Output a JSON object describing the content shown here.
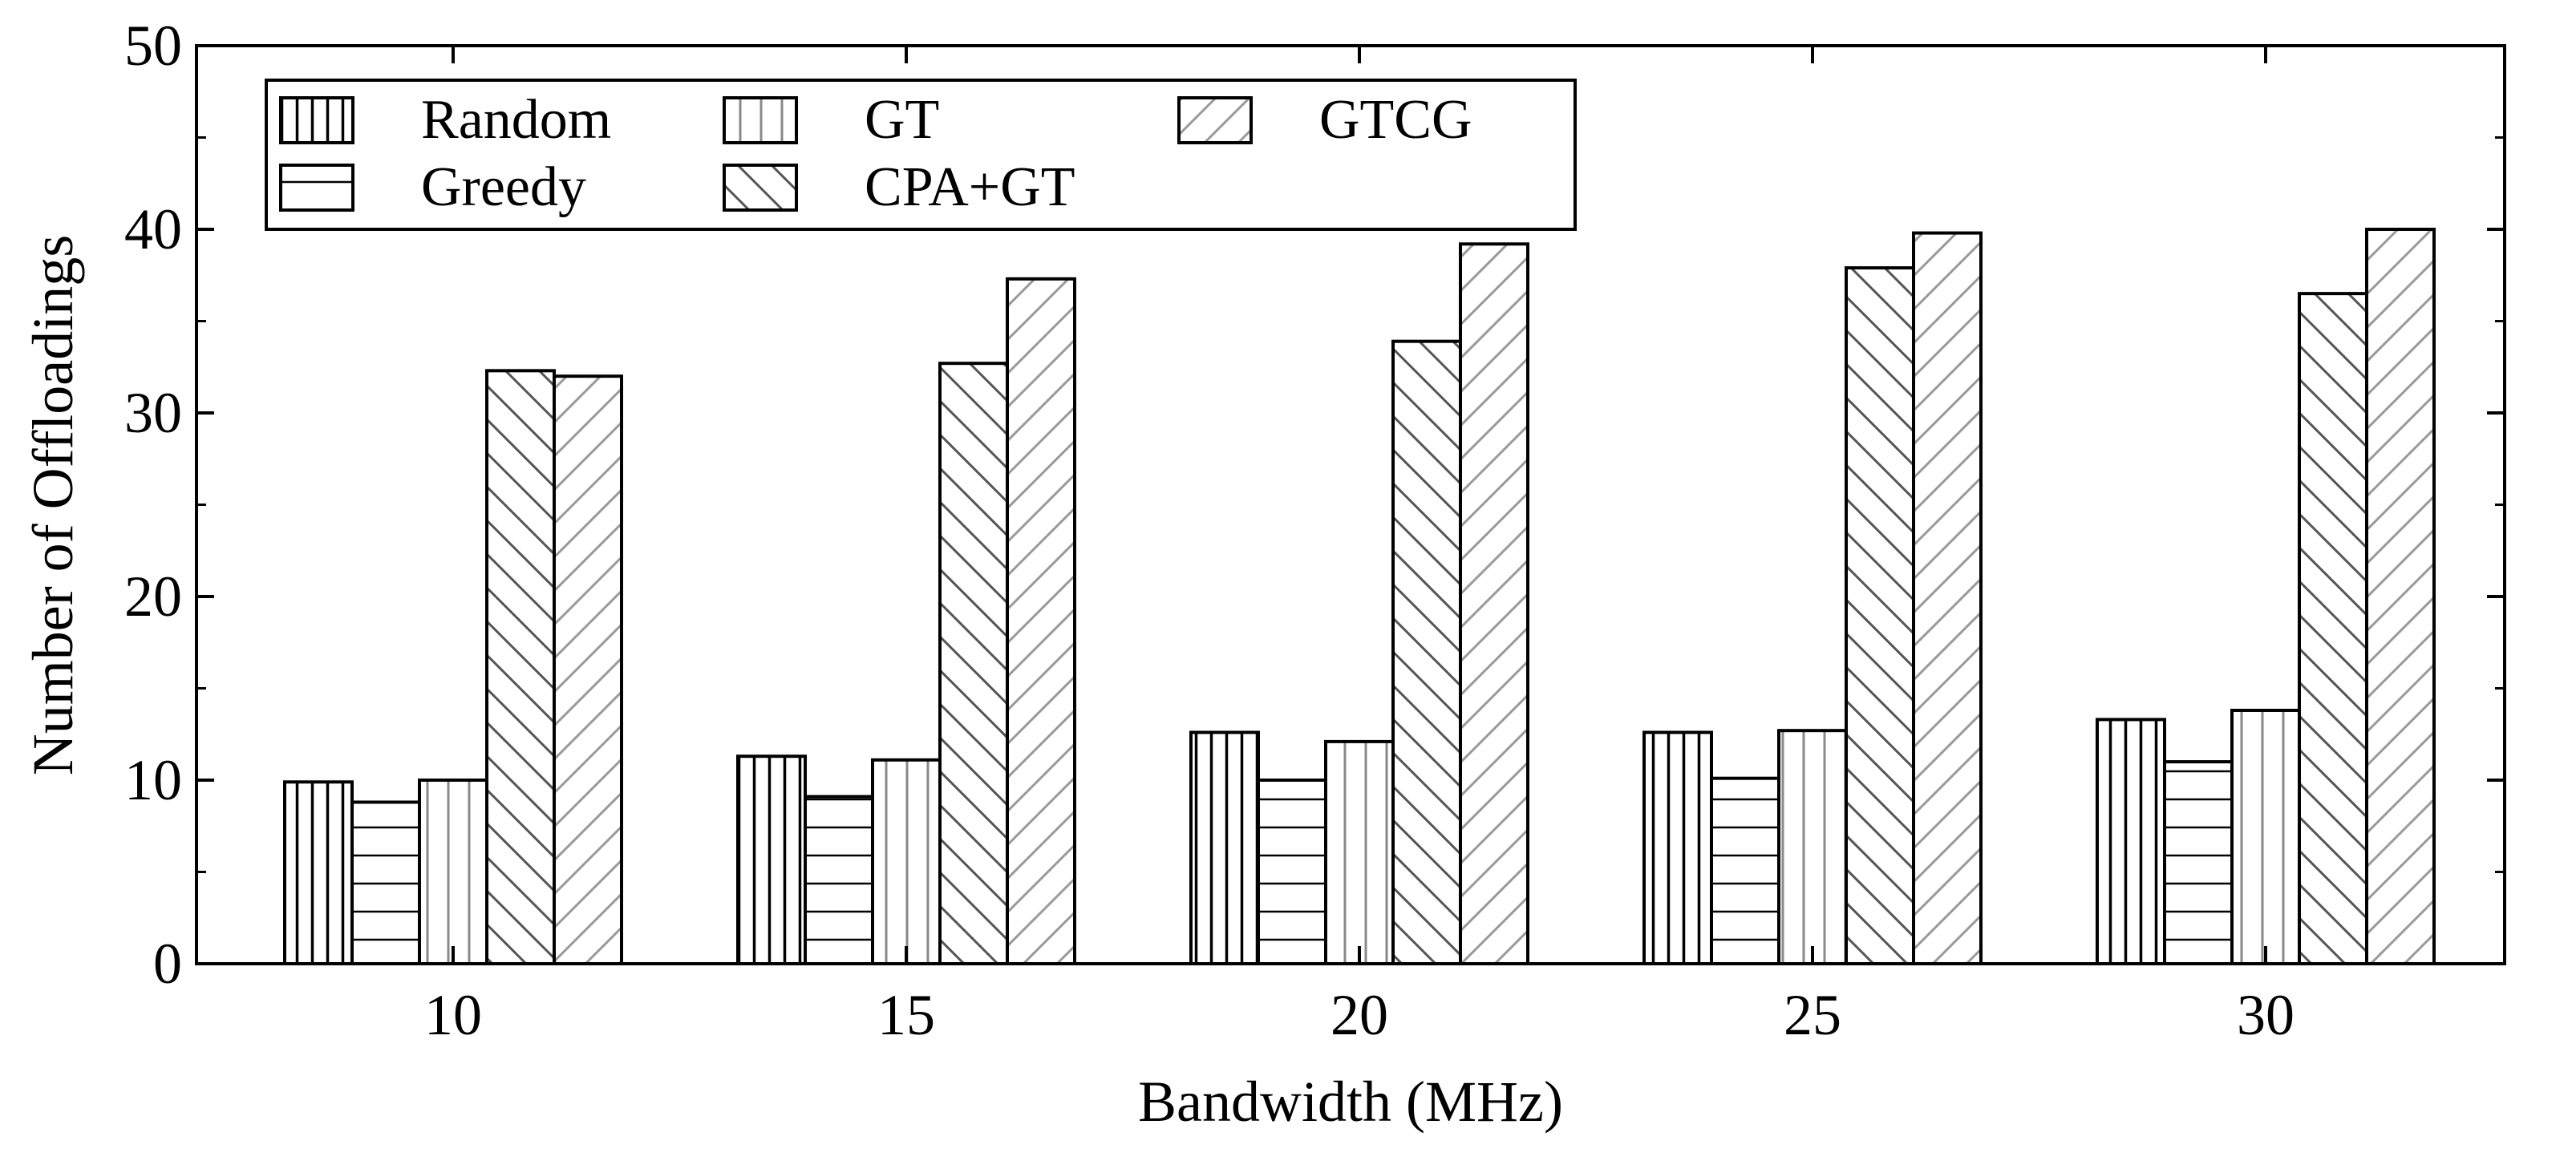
{
  "chart_data": {
    "type": "bar",
    "title": "",
    "xlabel": "Bandwidth (MHz)",
    "ylabel": "Number of Offloadings",
    "categories": [
      "10",
      "15",
      "20",
      "25",
      "30"
    ],
    "ylim": [
      0,
      50
    ],
    "yticks": [
      "0",
      "10",
      "20",
      "30",
      "40",
      "50"
    ],
    "grid": false,
    "legend_position": "top-left",
    "series": [
      {
        "name": "Random",
        "pattern": "vertical-dense",
        "values": [
          9.9,
          11.3,
          12.6,
          12.6,
          13.3
        ]
      },
      {
        "name": "Greedy",
        "pattern": "horizontal",
        "values": [
          8.8,
          9.1,
          10.0,
          10.1,
          11.0
        ]
      },
      {
        "name": "GT",
        "pattern": "vertical-sparse",
        "values": [
          10.0,
          11.1,
          12.1,
          12.7,
          13.8
        ]
      },
      {
        "name": "CPA+GT",
        "pattern": "backslash",
        "values": [
          32.3,
          32.7,
          33.9,
          37.9,
          36.5
        ]
      },
      {
        "name": "GTCG",
        "pattern": "slash-light",
        "values": [
          32.0,
          37.3,
          39.2,
          39.8,
          40.0
        ]
      }
    ],
    "colors": {
      "stroke": "#000000",
      "hatch": "#000000",
      "hatch_light": "#8a8a8a",
      "background": "#ffffff"
    }
  }
}
